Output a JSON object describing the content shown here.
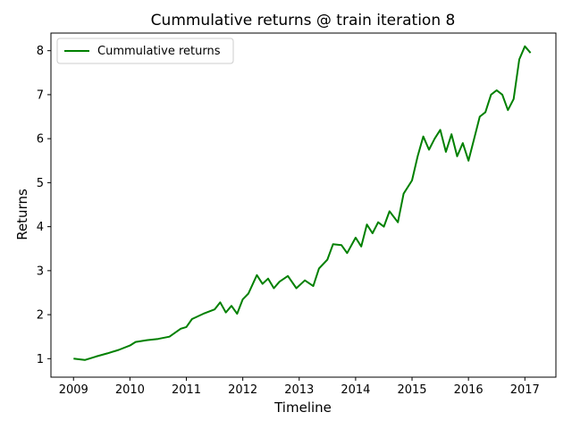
{
  "chart_data": {
    "type": "line",
    "title": "Cummulative returns @ train iteration 8",
    "xlabel": "Timeline",
    "ylabel": "Returns",
    "xlim": [
      2008.6,
      2017.55
    ],
    "ylim": [
      0.58,
      8.4
    ],
    "xticks": [
      "2009",
      "2010",
      "2011",
      "2012",
      "2013",
      "2014",
      "2015",
      "2016",
      "2017"
    ],
    "yticks": [
      "1",
      "2",
      "3",
      "4",
      "5",
      "6",
      "7",
      "8"
    ],
    "grid": false,
    "legend_position": "top-left",
    "series": [
      {
        "name": "Cummulative returns",
        "color": "#008000",
        "x": [
          2009.0,
          2009.2,
          2009.4,
          2009.6,
          2009.8,
          2010.0,
          2010.1,
          2010.3,
          2010.5,
          2010.7,
          2010.9,
          2011.0,
          2011.1,
          2011.3,
          2011.5,
          2011.6,
          2011.7,
          2011.8,
          2011.9,
          2012.0,
          2012.1,
          2012.25,
          2012.35,
          2012.45,
          2012.55,
          2012.65,
          2012.8,
          2012.95,
          2013.1,
          2013.25,
          2013.35,
          2013.5,
          2013.6,
          2013.75,
          2013.85,
          2014.0,
          2014.1,
          2014.2,
          2014.3,
          2014.4,
          2014.5,
          2014.6,
          2014.75,
          2014.85,
          2015.0,
          2015.1,
          2015.2,
          2015.3,
          2015.4,
          2015.5,
          2015.6,
          2015.7,
          2015.8,
          2015.9,
          2016.0,
          2016.1,
          2016.2,
          2016.3,
          2016.4,
          2016.5,
          2016.6,
          2016.7,
          2016.8,
          2016.9,
          2017.0,
          2017.1
        ],
        "values": [
          1.0,
          0.97,
          1.05,
          1.12,
          1.2,
          1.3,
          1.38,
          1.42,
          1.45,
          1.5,
          1.68,
          1.72,
          1.9,
          2.02,
          2.12,
          2.28,
          2.05,
          2.2,
          2.02,
          2.35,
          2.48,
          2.9,
          2.7,
          2.82,
          2.6,
          2.75,
          2.88,
          2.6,
          2.78,
          2.65,
          3.05,
          3.25,
          3.6,
          3.58,
          3.4,
          3.75,
          3.55,
          4.05,
          3.85,
          4.1,
          4.0,
          4.35,
          4.1,
          4.75,
          5.05,
          5.6,
          6.05,
          5.75,
          6.0,
          6.2,
          5.7,
          6.1,
          5.6,
          5.9,
          5.5,
          6.0,
          6.5,
          6.6,
          7.0,
          7.1,
          7.0,
          6.65,
          6.9,
          7.8,
          8.1,
          7.95
        ]
      }
    ]
  }
}
